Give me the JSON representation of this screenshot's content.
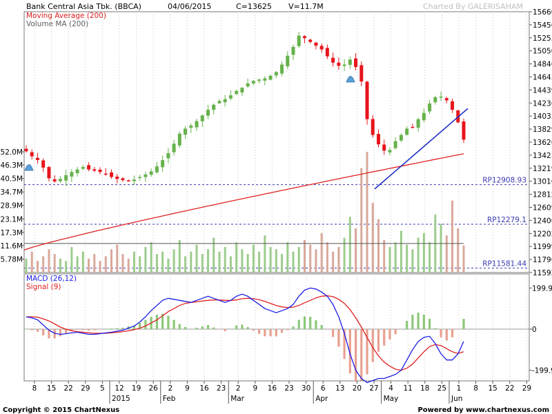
{
  "header": {
    "title": "Bank Central Asia Tbk. (BBCA)",
    "date": "04/06/2015",
    "close_text": "C=13625",
    "volume_text": "V=11.7M",
    "charted_by": "Charted By GALERISAHAM"
  },
  "legend": {
    "moving_average": "Moving Average (200)",
    "volume_ma": "Volume MA (200)",
    "macd": "MACD (26,12)",
    "signal": "Signal (9)"
  },
  "footer": {
    "copyright": "Copyright © 2015 ChartNexus",
    "powered": "Powered by www.chartnexus.com"
  },
  "colors": {
    "up": "#66b24c",
    "down": "#e8141b",
    "ma": "#e02020",
    "vol_up": "#9ccc8c",
    "vol_down": "#d9a89a",
    "volume_ma": "#555555",
    "trendline": "#2030c8",
    "level_line": "#3a3ab0",
    "macd": "#1a1ae6",
    "signal": "#e02020",
    "hist_up": "#8cc878",
    "hist_down": "#e8a090",
    "alert": "#5aa0d8",
    "grid": "#c8c8c8"
  },
  "chart_data": [
    {
      "type": "candlestick",
      "title": "Bank Central Asia Tbk. (BBCA)",
      "x_tick_labels": [
        "8",
        "15",
        "22",
        "29",
        "5",
        "12",
        "19",
        "26",
        "2",
        "9",
        "16",
        "23",
        "2",
        "9",
        "16",
        "23",
        "30",
        "6",
        "13",
        "20",
        "27",
        "4",
        "11",
        "18",
        "25",
        "1",
        "8",
        "15",
        "22",
        "29"
      ],
      "month_labels": [
        "2015",
        "Feb",
        "Mar",
        "Apr",
        "May",
        "Jun"
      ],
      "y_tick_labels": [
        "15660",
        "15456",
        "15253",
        "15050",
        "14846",
        "14643",
        "14439",
        "14236",
        "14033",
        "13829",
        "13626",
        "13423",
        "13219",
        "13016",
        "12812",
        "12609",
        "12406",
        "12202",
        "11999",
        "11796",
        "11592"
      ],
      "ylim": [
        11510,
        15660
      ],
      "close_path": [
        13440,
        13360,
        13300,
        13180,
        13010,
        12960,
        13000,
        13060,
        13110,
        13150,
        13190,
        13150,
        13130,
        13110,
        13080,
        13030,
        13000,
        12980,
        12970,
        12990,
        13030,
        13070,
        13120,
        13200,
        13300,
        13410,
        13560,
        13720,
        13800,
        13850,
        13920,
        14010,
        14100,
        14180,
        14240,
        14270,
        14330,
        14400,
        14450,
        14520,
        14560,
        14580,
        14600,
        14640,
        14700,
        14820,
        14960,
        15100,
        15280,
        15240,
        15180,
        15120,
        15060,
        14950,
        14850,
        14800,
        14820,
        14900,
        14780,
        14550,
        13950,
        13700,
        13550,
        13450,
        13460,
        13600,
        13700,
        13800,
        13820,
        13950,
        14050,
        14200,
        14300,
        14310,
        14250,
        14100,
        13900,
        13625
      ],
      "ma_label": "Moving Average (200)",
      "ma_range": [
        11870,
        13400
      ],
      "trendline": {
        "from": [
          12840
        ],
        "to": [
          14120
        ]
      },
      "levels": [
        {
          "label": "RP12908.93",
          "value": 12908.93
        },
        {
          "label": "RP12279.1",
          "value": 12279.1
        },
        {
          "label": "RP11581.44",
          "value": 11581.44
        }
      ]
    },
    {
      "type": "bar",
      "title": "Volume",
      "y_tick_labels": [
        "52.0M",
        "46.3M",
        "40.5M",
        "34.7M",
        "28.9M",
        "23.1M",
        "17.3M",
        "11.6M",
        "5.78M"
      ],
      "ylim": [
        0,
        52.0
      ],
      "values_m": [
        6,
        9,
        5,
        7,
        10,
        8,
        6,
        5,
        11,
        7,
        9,
        6,
        8,
        5,
        7,
        10,
        12,
        8,
        6,
        9,
        7,
        11,
        13,
        8,
        9,
        6,
        10,
        14,
        7,
        9,
        12,
        8,
        10,
        15,
        9,
        11,
        7,
        13,
        10,
        8,
        12,
        9,
        16,
        11,
        10,
        8,
        13,
        9,
        11,
        14,
        12,
        10,
        17,
        13,
        9,
        11,
        15,
        24,
        19,
        45,
        52,
        30,
        23,
        14,
        11,
        13,
        18,
        12,
        10,
        15,
        17,
        13,
        25,
        21,
        16,
        31,
        19,
        11.7
      ],
      "volume_ma_label": "Volume MA (200)",
      "volume_ma_m": 12.5
    },
    {
      "type": "line",
      "title": "MACD (26,12)",
      "series": [
        {
          "name": "MACD (26,12)"
        },
        {
          "name": "Signal (9)"
        }
      ],
      "y_tick_labels": [
        "199.9",
        "0",
        "-199.9"
      ],
      "ylim": [
        -260,
        260
      ],
      "macd_path": [
        60,
        55,
        45,
        20,
        -5,
        -20,
        -25,
        -22,
        -18,
        -15,
        -20,
        -25,
        -25,
        -22,
        -18,
        -15,
        -10,
        -5,
        5,
        15,
        35,
        60,
        90,
        115,
        140,
        150,
        145,
        140,
        135,
        130,
        140,
        150,
        160,
        150,
        140,
        130,
        140,
        160,
        170,
        160,
        140,
        120,
        100,
        90,
        80,
        90,
        100,
        120,
        160,
        190,
        200,
        195,
        180,
        160,
        120,
        60,
        -20,
        -120,
        -200,
        -240,
        -260,
        -250,
        -240,
        -240,
        -230,
        -220,
        -200,
        -150,
        -100,
        -60,
        -40,
        -35,
        -70,
        -120,
        -150,
        -150,
        -120,
        -60
      ],
      "signal_path": [
        60,
        60,
        58,
        50,
        40,
        25,
        10,
        0,
        -8,
        -12,
        -15,
        -18,
        -20,
        -20,
        -20,
        -18,
        -15,
        -12,
        -8,
        -3,
        5,
        15,
        30,
        45,
        65,
        85,
        100,
        115,
        125,
        130,
        133,
        137,
        140,
        142,
        142,
        140,
        140,
        142,
        148,
        150,
        148,
        143,
        135,
        125,
        115,
        108,
        105,
        107,
        115,
        128,
        140,
        152,
        160,
        162,
        158,
        145,
        125,
        95,
        55,
        10,
        -40,
        -90,
        -130,
        -160,
        -180,
        -195,
        -200,
        -190,
        -170,
        -140,
        -110,
        -85,
        -75,
        -80,
        -95,
        -110,
        -118,
        -110
      ]
    }
  ]
}
